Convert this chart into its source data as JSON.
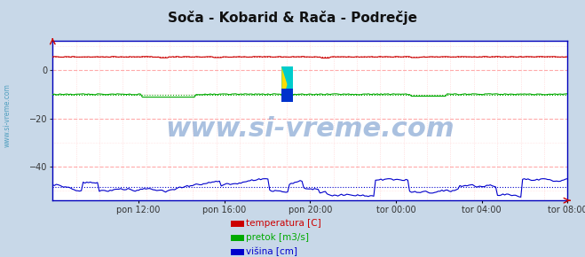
{
  "title": "Soča - Kobarid & Rača - Podrečje",
  "title_fontsize": 11,
  "bg_color": "#c8d8e8",
  "plot_bg_color": "#ffffff",
  "ylim": [
    -54,
    12
  ],
  "yticks": [
    0,
    -20,
    -40
  ],
  "xlabel_times": [
    "pon 12:00",
    "pon 16:00",
    "pon 20:00",
    "tor 00:00",
    "tor 04:00",
    "tor 08:00"
  ],
  "n_points": 288,
  "temp_mean": 5.5,
  "pretok_mean": -10.0,
  "visina_mean": -48.0,
  "color_temp": "#cc0000",
  "color_pretok": "#00aa00",
  "color_visina": "#0000cc",
  "grid_h_color": "#ffaaaa",
  "grid_v_color": "#ffcccc",
  "watermark": "www.si-vreme.com",
  "watermark_color": "#4477bb",
  "watermark_fontsize": 22,
  "sidebar_text": "www.si-vreme.com",
  "sidebar_color": "#4499bb",
  "legend_labels": [
    "temperatura [C]",
    "pretok [m3/s]",
    "višina [cm]"
  ],
  "legend_colors": [
    "#cc0000",
    "#00aa00",
    "#0000cc"
  ],
  "spine_color": "#0000bb",
  "bottom_arrow_color": "#cc0000",
  "right_arrow_color": "#cc0000"
}
